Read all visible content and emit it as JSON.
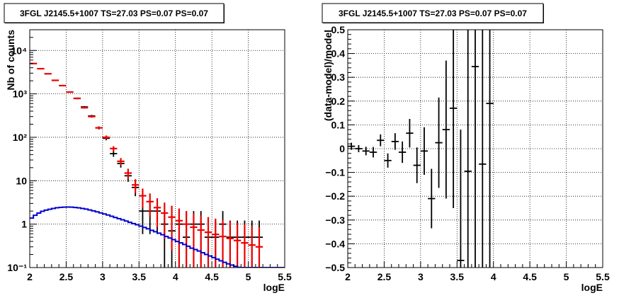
{
  "chart_data": [
    {
      "type": "scatter",
      "title": "3FGL J2145.5+1007 TS=27.03 PS=0.07 PS=0.07",
      "xlabel": "logE",
      "ylabel": "Nb of counts",
      "xlim": [
        2,
        5.5
      ],
      "ylim": [
        0.1,
        30000
      ],
      "yscale": "log",
      "grid": true,
      "x_ticks": [
        2,
        2.5,
        3,
        3.5,
        4,
        4.5,
        5,
        5.5
      ],
      "x_tick_labels": [
        "2",
        "2.5",
        "3",
        "3.5",
        "4",
        "4.5",
        "5",
        "5.5"
      ],
      "y_ticks": [
        0.1,
        1,
        10,
        100,
        1000,
        10000
      ],
      "y_tick_labels": [
        "10⁻¹",
        "1",
        "10",
        "10²",
        "10³",
        "10⁴"
      ],
      "colors": {
        "data": "#000000",
        "model": "#ee0000",
        "source": "#0000cc"
      },
      "series": [
        {
          "role": "data",
          "x": [
            2.05,
            2.15,
            2.25,
            2.35,
            2.45,
            2.55,
            2.65,
            2.75,
            2.85,
            2.95,
            3.05,
            3.15,
            3.25,
            3.35,
            3.45,
            3.55,
            3.65,
            3.75,
            3.85,
            3.95,
            4.05,
            4.15,
            4.25,
            4.35,
            4.45,
            4.55,
            4.65,
            4.75,
            4.85,
            4.95,
            5.05,
            5.15
          ],
          "y": [
            5000,
            3800,
            2900,
            2100,
            1550,
            1100,
            780,
            500,
            310,
            165,
            95,
            42,
            25,
            13,
            7,
            2,
            2,
            2,
            1,
            0.7,
            1,
            0.5,
            1,
            1,
            0.5,
            0.5,
            1,
            0.5,
            0.5,
            0.5,
            0.5,
            0.5
          ],
          "yerr": [
            70,
            62,
            54,
            46,
            39,
            33,
            28,
            22,
            17.6,
            12.8,
            9.7,
            6.5,
            5,
            3.6,
            2.6,
            1.41,
            1.41,
            1.41,
            1,
            0.84,
            1,
            0.71,
            1,
            1,
            0.71,
            0.71,
            1,
            0.71,
            0.71,
            0.71,
            0.71,
            0.71
          ],
          "visible_from": 6
        },
        {
          "role": "model",
          "x": [
            2.05,
            2.15,
            2.25,
            2.35,
            2.45,
            2.55,
            2.65,
            2.75,
            2.85,
            2.95,
            3.05,
            3.15,
            3.25,
            3.35,
            3.45,
            3.55,
            3.65,
            3.75,
            3.85,
            3.95,
            4.05,
            4.15,
            4.25,
            4.35,
            4.45,
            4.55,
            4.65,
            4.75,
            4.85,
            4.95,
            5.05,
            5.15
          ],
          "y": [
            5000,
            3800,
            2900,
            2050,
            1550,
            1100,
            790,
            480,
            300,
            165,
            100,
            55,
            28,
            15,
            8,
            4.5,
            3.3,
            2.4,
            1.8,
            1.45,
            1.2,
            1.0,
            0.85,
            0.73,
            0.65,
            0.58,
            0.52,
            0.47,
            0.42,
            0.37,
            0.33,
            0.3
          ],
          "yerr": [
            70,
            62,
            54,
            45,
            39,
            33,
            28,
            22,
            17,
            12.8,
            10,
            7.4,
            5.3,
            3.9,
            2.8,
            2.1,
            1.8,
            1.55,
            1.34,
            1.2,
            1.1,
            1.0,
            0.92,
            0.85,
            0.81,
            0.76,
            0.72,
            0.69,
            0.65,
            0.61,
            0.57,
            0.55
          ]
        },
        {
          "role": "source",
          "x": [
            2.0,
            2.05,
            2.1,
            2.15,
            2.2,
            2.25,
            2.3,
            2.35,
            2.4,
            2.45,
            2.5,
            2.55,
            2.6,
            2.65,
            2.7,
            2.75,
            2.8,
            2.85,
            2.9,
            2.95,
            3.0,
            3.05,
            3.1,
            3.15,
            3.2,
            3.25,
            3.3,
            3.35,
            3.4,
            3.45,
            3.5,
            3.55,
            3.6,
            3.65,
            3.7,
            3.75,
            3.8,
            3.85,
            3.9,
            3.95,
            4.0,
            4.05,
            4.1,
            4.15,
            4.2,
            4.25,
            4.3,
            4.35,
            4.4,
            4.45,
            4.5,
            4.55,
            4.6,
            4.65,
            4.7,
            4.75,
            4.8,
            4.85,
            4.9,
            4.95,
            5.0,
            5.05,
            5.1,
            5.15,
            5.2,
            5.25,
            5.3,
            5.35,
            5.4,
            5.45
          ],
          "y": [
            1.38,
            1.6,
            1.8,
            1.98,
            2.1,
            2.2,
            2.3,
            2.38,
            2.43,
            2.47,
            2.48,
            2.47,
            2.42,
            2.37,
            2.3,
            2.22,
            2.12,
            2.02,
            1.92,
            1.82,
            1.72,
            1.62,
            1.52,
            1.42,
            1.34,
            1.26,
            1.18,
            1.1,
            1.03,
            0.97,
            0.9,
            0.84,
            0.78,
            0.72,
            0.67,
            0.62,
            0.57,
            0.52,
            0.48,
            0.44,
            0.4,
            0.37,
            0.34,
            0.31,
            0.28,
            0.26,
            0.24,
            0.22,
            0.2,
            0.185,
            0.17,
            0.156,
            0.143,
            0.132,
            0.122,
            0.114,
            0.107,
            0.101,
            0.1,
            0.1,
            0.1,
            0.1,
            0.1,
            0.1,
            0.1,
            0.1,
            0.1,
            0.1,
            0.1,
            0.1
          ]
        }
      ]
    },
    {
      "type": "scatter",
      "title": "3FGL J2145.5+1007 TS=27.03 PS=0.07 PS=0.07",
      "xlabel": "logE",
      "ylabel": "(data-model)/model",
      "xlim": [
        2,
        5.5
      ],
      "ylim": [
        -0.5,
        0.5
      ],
      "grid": true,
      "x_ticks": [
        2,
        2.5,
        3,
        3.5,
        4,
        4.5,
        5,
        5.5
      ],
      "x_tick_labels": [
        "2",
        "2.5",
        "3",
        "3.5",
        "4",
        "4.5",
        "5",
        "5.5"
      ],
      "y_ticks": [
        -0.5,
        -0.4,
        -0.3,
        -0.2,
        -0.1,
        0,
        0.1,
        0.2,
        0.3,
        0.4,
        0.5
      ],
      "y_tick_labels": [
        "−0.5",
        "−0.4",
        "−0.3",
        "−0.2",
        "−0.1",
        "0",
        "0.1",
        "0.2",
        "0.3",
        "0.4",
        "0.5"
      ],
      "colors": {
        "data": "#000000"
      },
      "series": [
        {
          "role": "data",
          "x": [
            2.05,
            2.15,
            2.25,
            2.35,
            2.45,
            2.55,
            2.65,
            2.75,
            2.85,
            2.95,
            3.05,
            3.15,
            3.25,
            3.35,
            3.45,
            3.55,
            3.65,
            3.75,
            3.85,
            3.95
          ],
          "y": [
            0.01,
            0.0,
            -0.01,
            -0.015,
            0.035,
            -0.05,
            0.03,
            -0.015,
            0.065,
            -0.07,
            -0.01,
            -0.21,
            0.025,
            0.08,
            0.17,
            -0.47,
            -0.095,
            0.345,
            -0.065,
            0.19
          ],
          "yerr": [
            0.015,
            0.015,
            0.018,
            0.022,
            0.025,
            0.03,
            0.035,
            0.045,
            0.06,
            0.075,
            0.1,
            0.125,
            0.19,
            0.29,
            0.42,
            0.55,
            0.75,
            0.9,
            1.0,
            1.0
          ]
        }
      ]
    }
  ]
}
